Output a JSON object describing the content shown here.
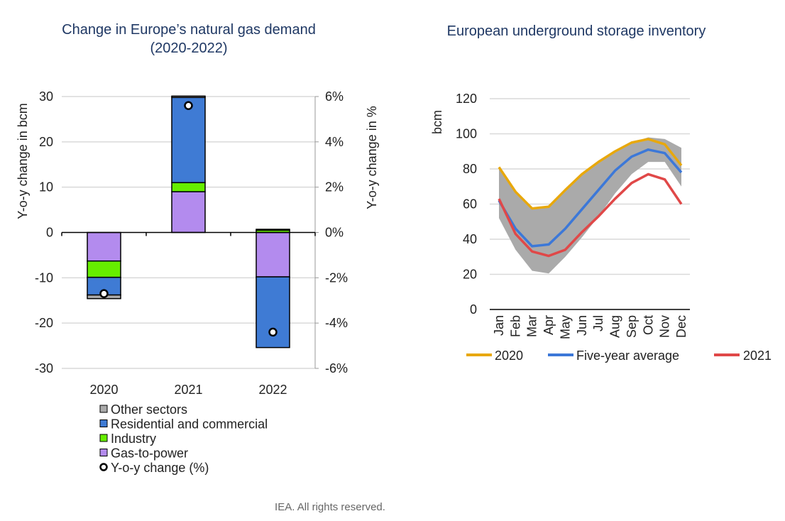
{
  "chart_data": [
    {
      "type": "bar",
      "stacked": true,
      "title": "Change in Europe’s natural gas demand",
      "subtitle": "(2020-2022)",
      "ylabel": "Y-o-y change in bcm",
      "y2label": "Y-o-y change in %",
      "ylim": [
        -30,
        30
      ],
      "y2lim": [
        -6,
        6
      ],
      "yticks": [
        "30",
        "20",
        "10",
        "0",
        "-10",
        "-20",
        "-30"
      ],
      "y2ticks": [
        "6%",
        "4%",
        "2%",
        "0%",
        "-2%",
        "-4%",
        "-6%"
      ],
      "categories": [
        "2020",
        "2021",
        "2022"
      ],
      "series": [
        {
          "name": "Gas-to-power",
          "color": "#b38bee",
          "values": [
            -6.3,
            9.0,
            -9.8
          ]
        },
        {
          "name": "Industry",
          "color": "#66ee00",
          "values": [
            -3.6,
            2.0,
            0.5
          ]
        },
        {
          "name": "Residential and commercial",
          "color": "#3f7bd4",
          "values": [
            -3.9,
            18.8,
            -15.6
          ]
        },
        {
          "name": "Other sectors",
          "color": "#aaaaaa",
          "values": [
            -0.8,
            0.3,
            0.2
          ]
        }
      ],
      "pct_series": {
        "name": "Y-o-y change (%)",
        "values": [
          -2.7,
          5.6,
          -4.4
        ]
      },
      "legend_order": [
        "Other sectors",
        "Residential and commercial",
        "Industry",
        "Gas-to-power",
        "Y-o-y change (%)"
      ],
      "grid": true,
      "legend_position": "bottom"
    },
    {
      "type": "line",
      "title": "European underground storage inventory",
      "ylabel": "bcm",
      "ylim": [
        0,
        120
      ],
      "yticks": [
        "0",
        "20",
        "40",
        "60",
        "80",
        "100",
        "120"
      ],
      "x": [
        "Jan",
        "Feb",
        "Mar",
        "Apr",
        "May",
        "Jun",
        "Jul",
        "Aug",
        "Sep",
        "Oct",
        "Nov",
        "Dec"
      ],
      "band": {
        "name": "Five-year range",
        "color": "#aaaaaa",
        "lower": [
          52,
          34,
          22,
          20.5,
          30,
          41,
          53,
          66,
          77,
          84,
          84,
          70
        ],
        "upper": [
          80,
          67,
          58,
          59,
          68,
          77,
          84,
          90,
          95,
          98,
          97,
          92
        ]
      },
      "series": [
        {
          "name": "2020",
          "color": "#e8a80c",
          "values": [
            81,
            67,
            57.5,
            58.5,
            68,
            77,
            84,
            90,
            95,
            97,
            94,
            82
          ]
        },
        {
          "name": "Five-year average",
          "color": "#3c78d8",
          "values": [
            62,
            46,
            36,
            37,
            46,
            57,
            68,
            79,
            87,
            91,
            89,
            78
          ]
        },
        {
          "name": "2021",
          "color": "#e04848",
          "values": [
            63,
            43,
            33,
            30.5,
            34,
            44,
            53,
            63,
            72,
            77,
            74,
            60
          ]
        }
      ],
      "grid": true,
      "legend_position": "bottom"
    }
  ],
  "footer": "IEA. All rights reserved."
}
